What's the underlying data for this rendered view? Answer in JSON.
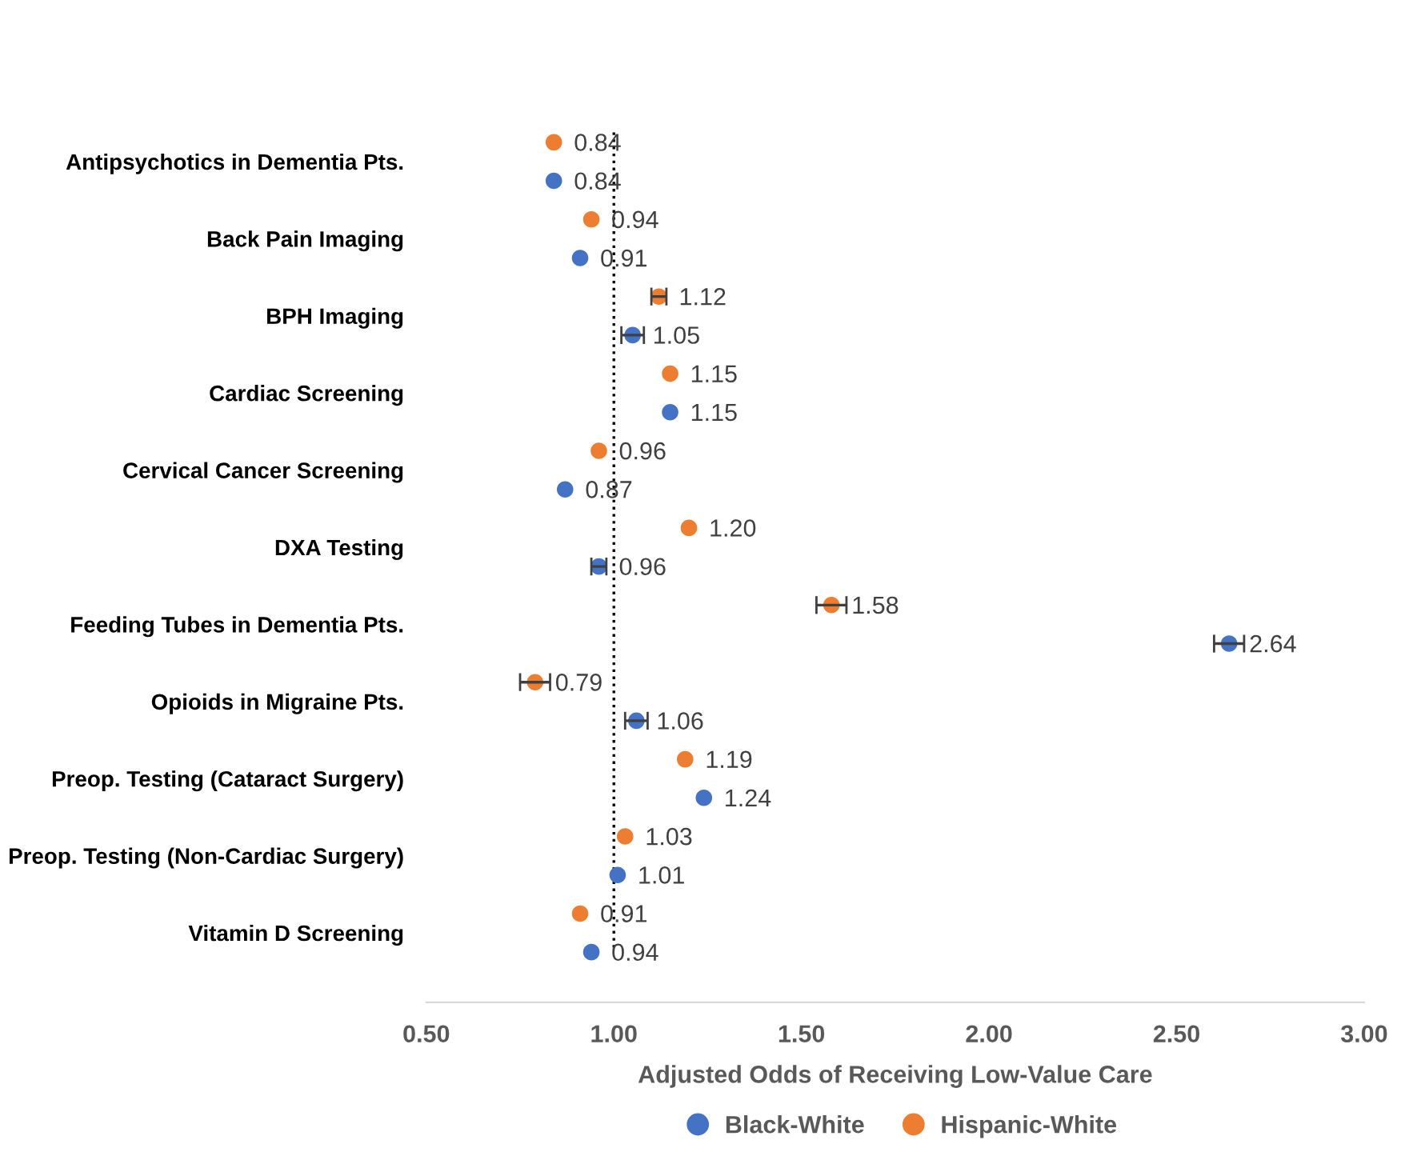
{
  "chart_data": {
    "type": "scatter",
    "orientation": "horizontal",
    "categories": [
      "Antipsychotics in Dementia Pts.",
      "Back Pain Imaging",
      "BPH Imaging",
      "Cardiac Screening",
      "Cervical Cancer Screening",
      "DXA Testing",
      "Feeding Tubes in Dementia Pts.",
      "Opioids in Migraine Pts.",
      "Preop. Testing (Cataract Surgery)",
      "Preop. Testing (Non-Cardiac Surgery)",
      "Vitamin D Screening"
    ],
    "xlabel": "Adjusted Odds of Receiving Low-Value Care",
    "xlim": [
      0.5,
      3.0
    ],
    "xticks": [
      {
        "value": 0.5,
        "label": "0.50"
      },
      {
        "value": 1.0,
        "label": "1.00"
      },
      {
        "value": 1.5,
        "label": "1.50"
      },
      {
        "value": 2.0,
        "label": "2.00"
      },
      {
        "value": 2.5,
        "label": "2.50"
      },
      {
        "value": 3.0,
        "label": "3.00"
      }
    ],
    "series": [
      {
        "name": "Black-White",
        "color": "#4472c4",
        "values": [
          0.84,
          0.91,
          1.05,
          1.15,
          0.87,
          0.96,
          2.64,
          1.06,
          1.24,
          1.01,
          0.94
        ],
        "errors": [
          null,
          null,
          0.03,
          null,
          null,
          0.02,
          0.04,
          0.03,
          null,
          null,
          null
        ],
        "value_labels": [
          "0.84",
          "0.91",
          "1.05",
          "1.15",
          "0.87",
          "0.96",
          "2.64",
          "1.06",
          "1.24",
          "1.01",
          "0.94"
        ]
      },
      {
        "name": "Hispanic-White",
        "color": "#ed7d31",
        "values": [
          0.84,
          0.94,
          1.12,
          1.15,
          0.96,
          1.2,
          1.58,
          0.79,
          1.19,
          1.03,
          0.91
        ],
        "errors": [
          null,
          null,
          0.02,
          null,
          null,
          null,
          0.04,
          0.04,
          null,
          null,
          null
        ],
        "value_labels": [
          "0.84",
          "0.94",
          "1.12",
          "1.15",
          "0.96",
          "1.20",
          "1.58",
          "0.79",
          "1.19",
          "1.03",
          "0.91"
        ]
      }
    ],
    "ref_lines": [
      {
        "axis": "x",
        "value": 1.0,
        "color": "#000000",
        "line_style": "dotted"
      }
    ],
    "marker": "circle",
    "grid": false,
    "legend": "bottom"
  }
}
